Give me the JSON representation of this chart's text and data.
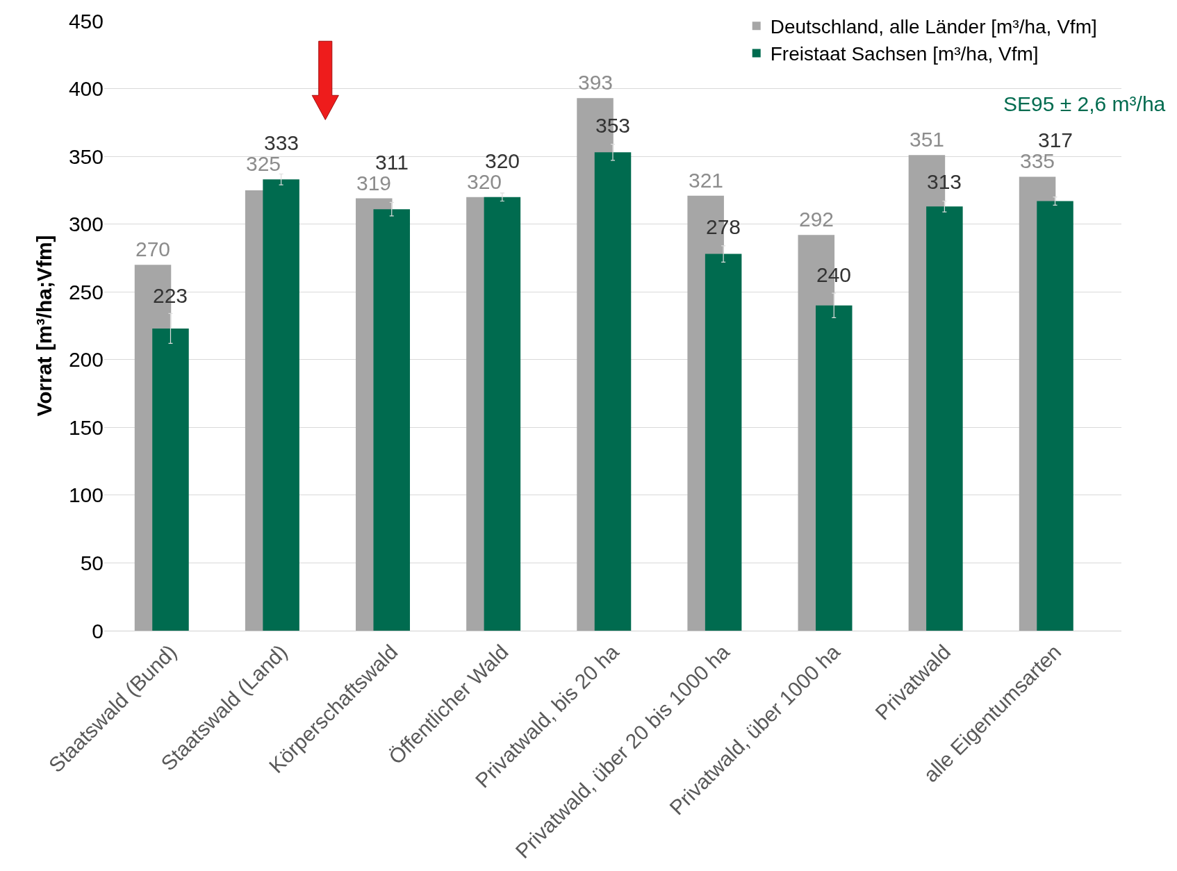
{
  "chart_data": {
    "type": "bar",
    "ylabel": "Vorrat [m³/ha;Vfm]",
    "categories": [
      "Staatswald (Bund)",
      "Staatswald (Land)",
      "Körperschaftswald",
      "Öffentlicher Wald",
      "Privatwald, bis 20 ha",
      "Privatwald, über 20 bis 1000 ha",
      "Privatwald, über 1000 ha",
      "Privatwald",
      "alle Eigentumsarten"
    ],
    "series": [
      {
        "name": "Deutschland, alle Länder [m³/ha, Vfm]",
        "color": "#a6a6a6",
        "values": [
          270,
          325,
          319,
          320,
          393,
          321,
          292,
          351,
          335
        ]
      },
      {
        "name": "Freistaat Sachsen [m³/ha, Vfm]",
        "color": "#006b4f",
        "values": [
          223,
          333,
          311,
          320,
          353,
          278,
          240,
          313,
          317
        ],
        "errors": [
          11,
          4,
          5,
          3,
          6,
          6,
          9,
          4,
          3
        ]
      }
    ],
    "ylim": [
      0,
      450
    ],
    "yticks": [
      0,
      50,
      100,
      150,
      200,
      250,
      300,
      350,
      400,
      450
    ],
    "grid": "y",
    "legend": "top right",
    "data_labels": true,
    "annotations": [
      "SE95 ± 2,6 m³/ha"
    ]
  }
}
